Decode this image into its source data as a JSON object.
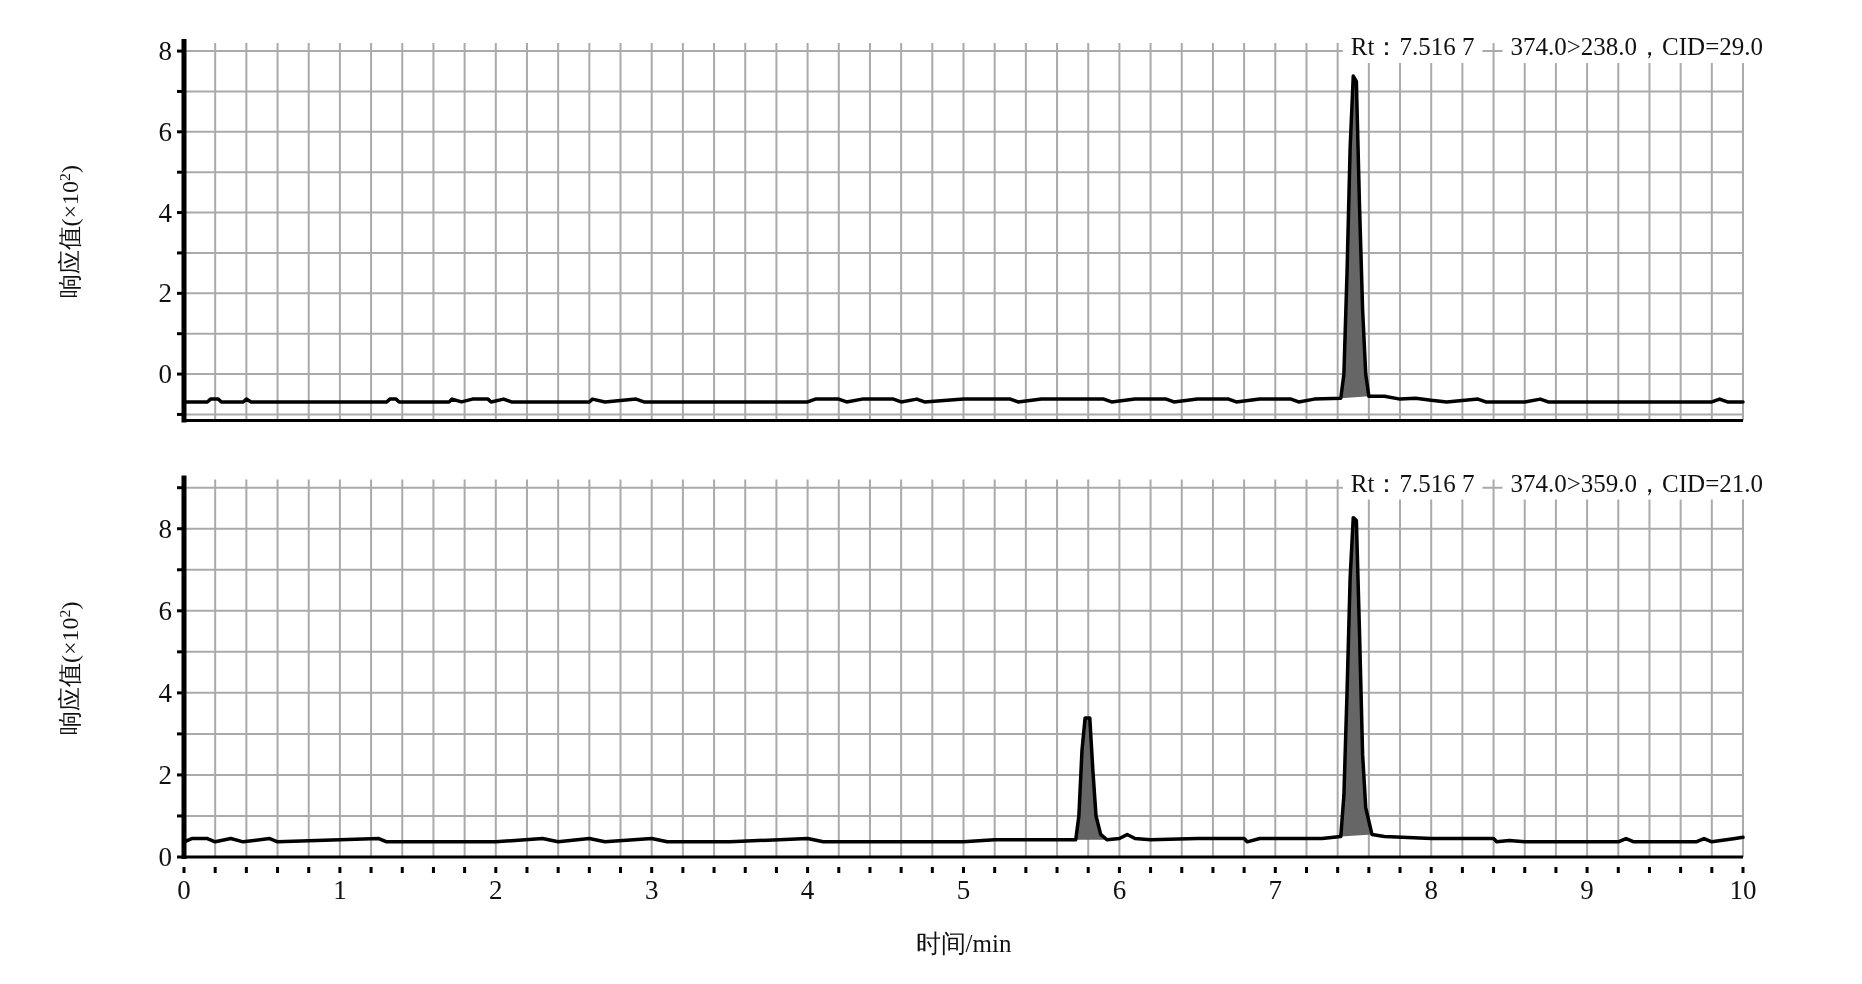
{
  "chart_data": [
    {
      "type": "line",
      "ylabel": "响应值(×10$^{2}$)",
      "grid": true,
      "tick_labels": "y",
      "xlim": [
        0,
        10
      ],
      "ylim": [
        -1.15,
        8.2
      ],
      "xticks": [
        0,
        {
          "value": 0.2,
          "label": null
        },
        {
          "value": 0.4,
          "label": null
        },
        {
          "value": 0.6,
          "label": null
        },
        {
          "value": 0.8,
          "label": null
        },
        1,
        {
          "value": 1.2,
          "label": null
        },
        {
          "value": 1.4,
          "label": null
        },
        {
          "value": 1.6,
          "label": null
        },
        {
          "value": 1.8,
          "label": null
        },
        2,
        {
          "value": 2.2,
          "label": null
        },
        {
          "value": 2.4,
          "label": null
        },
        {
          "value": 2.6,
          "label": null
        },
        {
          "value": 2.8,
          "label": null
        },
        3,
        {
          "value": 3.2,
          "label": null
        },
        {
          "value": 3.4,
          "label": null
        },
        {
          "value": 3.6,
          "label": null
        },
        {
          "value": 3.8,
          "label": null
        },
        4,
        {
          "value": 4.2,
          "label": null
        },
        {
          "value": 4.4,
          "label": null
        },
        {
          "value": 4.6,
          "label": null
        },
        {
          "value": 4.8,
          "label": null
        },
        5,
        {
          "value": 5.2,
          "label": null
        },
        {
          "value": 5.4,
          "label": null
        },
        {
          "value": 5.6,
          "label": null
        },
        {
          "value": 5.8,
          "label": null
        },
        6,
        {
          "value": 6.2,
          "label": null
        },
        {
          "value": 6.4,
          "label": null
        },
        {
          "value": 6.6,
          "label": null
        },
        {
          "value": 6.8,
          "label": null
        },
        7,
        {
          "value": 7.2,
          "label": null
        },
        {
          "value": 7.4,
          "label": null
        },
        {
          "value": 7.6,
          "label": null
        },
        {
          "value": 7.8,
          "label": null
        },
        8,
        {
          "value": 8.2,
          "label": null
        },
        {
          "value": 8.4,
          "label": null
        },
        {
          "value": 8.6,
          "label": null
        },
        {
          "value": 8.8,
          "label": null
        },
        9,
        {
          "value": 9.2,
          "label": null
        },
        {
          "value": 9.4,
          "label": null
        },
        {
          "value": 9.6,
          "label": null
        },
        {
          "value": 9.8,
          "label": null
        },
        10
      ],
      "yticks": [
        {
          "value": -1,
          "label": null
        },
        0,
        {
          "value": 1,
          "label": null
        },
        2,
        {
          "value": 3,
          "label": null
        },
        4,
        {
          "value": 5,
          "label": null
        },
        6,
        {
          "value": 7,
          "label": null
        },
        8
      ],
      "annotations": [
        "Rt：7.516 7",
        "374.0>238.0，CID=29.0"
      ],
      "series": [
        {
          "type": "area",
          "color": "#666666",
          "x": [
            7.42,
            7.44,
            7.46,
            7.48,
            7.5,
            7.52,
            7.54,
            7.56,
            7.58,
            7.6
          ],
          "values": [
            -0.6,
            0.0,
            2.5,
            5.6,
            7.38,
            7.25,
            4.2,
            1.6,
            0.0,
            -0.55
          ]
        },
        {
          "type": "line",
          "color": "#000000",
          "x": [
            0,
            0.15,
            0.17,
            0.22,
            0.24,
            0.38,
            0.4,
            0.43,
            1.3,
            1.32,
            1.36,
            1.38,
            1.7,
            1.72,
            1.78,
            1.85,
            1.95,
            1.97,
            2.05,
            2.1,
            2.6,
            2.62,
            2.7,
            2.9,
            2.95,
            4.0,
            4.05,
            4.2,
            4.25,
            4.35,
            4.55,
            4.6,
            4.7,
            4.75,
            5.0,
            5.3,
            5.35,
            5.5,
            5.9,
            5.95,
            6.1,
            6.3,
            6.35,
            6.5,
            6.7,
            6.75,
            6.9,
            7.1,
            7.15,
            7.25,
            7.42,
            7.44,
            7.46,
            7.48,
            7.5,
            7.52,
            7.54,
            7.56,
            7.58,
            7.6,
            7.7,
            7.8,
            7.9,
            8.0,
            8.1,
            8.3,
            8.35,
            8.6,
            8.7,
            8.75,
            9.0,
            9.8,
            9.85,
            9.9,
            10
          ],
          "values": [
            -0.69,
            -0.69,
            -0.62,
            -0.62,
            -0.69,
            -0.69,
            -0.62,
            -0.69,
            -0.69,
            -0.62,
            -0.62,
            -0.69,
            -0.69,
            -0.62,
            -0.69,
            -0.62,
            -0.62,
            -0.69,
            -0.62,
            -0.69,
            -0.69,
            -0.62,
            -0.69,
            -0.62,
            -0.69,
            -0.69,
            -0.62,
            -0.62,
            -0.69,
            -0.62,
            -0.62,
            -0.69,
            -0.62,
            -0.69,
            -0.62,
            -0.62,
            -0.69,
            -0.62,
            -0.62,
            -0.69,
            -0.62,
            -0.62,
            -0.69,
            -0.62,
            -0.62,
            -0.69,
            -0.62,
            -0.62,
            -0.69,
            -0.62,
            -0.6,
            0.0,
            2.5,
            5.6,
            7.38,
            7.25,
            4.2,
            1.6,
            0.0,
            -0.55,
            -0.55,
            -0.62,
            -0.6,
            -0.65,
            -0.69,
            -0.62,
            -0.69,
            -0.69,
            -0.62,
            -0.69,
            -0.69,
            -0.69,
            -0.62,
            -0.69,
            -0.69
          ]
        }
      ]
    },
    {
      "type": "line",
      "ylabel": "响应值(×10$^{2}$)",
      "xlabel": "时间/min",
      "grid": true,
      "xlim": [
        0,
        10
      ],
      "ylim": [
        0,
        9.2
      ],
      "xticks": [
        0,
        {
          "value": 0.2,
          "label": null
        },
        {
          "value": 0.4,
          "label": null
        },
        {
          "value": 0.6,
          "label": null
        },
        {
          "value": 0.8,
          "label": null
        },
        1,
        {
          "value": 1.2,
          "label": null
        },
        {
          "value": 1.4,
          "label": null
        },
        {
          "value": 1.6,
          "label": null
        },
        {
          "value": 1.8,
          "label": null
        },
        2,
        {
          "value": 2.2,
          "label": null
        },
        {
          "value": 2.4,
          "label": null
        },
        {
          "value": 2.6,
          "label": null
        },
        {
          "value": 2.8,
          "label": null
        },
        3,
        {
          "value": 3.2,
          "label": null
        },
        {
          "value": 3.4,
          "label": null
        },
        {
          "value": 3.6,
          "label": null
        },
        {
          "value": 3.8,
          "label": null
        },
        4,
        {
          "value": 4.2,
          "label": null
        },
        {
          "value": 4.4,
          "label": null
        },
        {
          "value": 4.6,
          "label": null
        },
        {
          "value": 4.8,
          "label": null
        },
        5,
        {
          "value": 5.2,
          "label": null
        },
        {
          "value": 5.4,
          "label": null
        },
        {
          "value": 5.6,
          "label": null
        },
        {
          "value": 5.8,
          "label": null
        },
        6,
        {
          "value": 6.2,
          "label": null
        },
        {
          "value": 6.4,
          "label": null
        },
        {
          "value": 6.6,
          "label": null
        },
        {
          "value": 6.8,
          "label": null
        },
        7,
        {
          "value": 7.2,
          "label": null
        },
        {
          "value": 7.4,
          "label": null
        },
        {
          "value": 7.6,
          "label": null
        },
        {
          "value": 7.8,
          "label": null
        },
        8,
        {
          "value": 8.2,
          "label": null
        },
        {
          "value": 8.4,
          "label": null
        },
        {
          "value": 8.6,
          "label": null
        },
        {
          "value": 8.8,
          "label": null
        },
        9,
        {
          "value": 9.2,
          "label": null
        },
        {
          "value": 9.4,
          "label": null
        },
        {
          "value": 9.6,
          "label": null
        },
        {
          "value": 9.8,
          "label": null
        },
        10
      ],
      "yticks": [
        0,
        {
          "value": 1,
          "label": null
        },
        2,
        {
          "value": 3,
          "label": null
        },
        4,
        {
          "value": 5,
          "label": null
        },
        6,
        {
          "value": 7,
          "label": null
        },
        8,
        {
          "value": 9,
          "label": null
        }
      ],
      "annotations": [
        "Rt：7.516 7",
        "374.0>359.0，CID=21.0"
      ],
      "series": [
        {
          "type": "area",
          "color": "#666666",
          "x": [
            5.72,
            5.74,
            5.76,
            5.78,
            5.81,
            5.83,
            5.85,
            5.88,
            5.92
          ],
          "values": [
            0.42,
            1.0,
            2.6,
            3.39,
            3.39,
            2.1,
            1.0,
            0.55,
            0.42
          ]
        },
        {
          "type": "area",
          "color": "#666666",
          "x": [
            7.42,
            7.44,
            7.46,
            7.48,
            7.5,
            7.52,
            7.54,
            7.56,
            7.58,
            7.62
          ],
          "values": [
            0.5,
            1.5,
            4.0,
            6.8,
            8.27,
            8.2,
            5.5,
            2.5,
            1.2,
            0.55
          ]
        },
        {
          "type": "line",
          "color": "#000000",
          "x": [
            0,
            0.05,
            0.15,
            0.2,
            0.3,
            0.38,
            0.55,
            0.6,
            1.25,
            1.3,
            2.0,
            2.3,
            2.4,
            2.6,
            2.7,
            3.0,
            3.1,
            3.5,
            4.0,
            4.1,
            4.5,
            5.0,
            5.2,
            5.5,
            5.72,
            5.74,
            5.76,
            5.78,
            5.81,
            5.83,
            5.85,
            5.88,
            5.92,
            6.0,
            6.05,
            6.1,
            6.2,
            6.5,
            6.8,
            6.82,
            6.9,
            7.3,
            7.42,
            7.44,
            7.46,
            7.48,
            7.5,
            7.52,
            7.54,
            7.56,
            7.58,
            7.62,
            7.7,
            8.0,
            8.4,
            8.42,
            8.5,
            8.6,
            9.0,
            9.2,
            9.25,
            9.3,
            9.7,
            9.75,
            9.8,
            9.95,
            10
          ],
          "values": [
            0.37,
            0.45,
            0.45,
            0.37,
            0.45,
            0.37,
            0.45,
            0.37,
            0.45,
            0.37,
            0.37,
            0.45,
            0.37,
            0.45,
            0.37,
            0.45,
            0.37,
            0.37,
            0.45,
            0.37,
            0.37,
            0.37,
            0.42,
            0.42,
            0.42,
            1.0,
            2.6,
            3.39,
            3.39,
            2.1,
            1.0,
            0.55,
            0.42,
            0.45,
            0.55,
            0.45,
            0.42,
            0.45,
            0.45,
            0.37,
            0.45,
            0.45,
            0.5,
            1.5,
            4.0,
            6.8,
            8.27,
            8.2,
            5.5,
            2.5,
            1.2,
            0.55,
            0.5,
            0.45,
            0.45,
            0.37,
            0.4,
            0.37,
            0.37,
            0.37,
            0.45,
            0.37,
            0.37,
            0.45,
            0.37,
            0.45,
            0.48
          ]
        }
      ]
    }
  ]
}
